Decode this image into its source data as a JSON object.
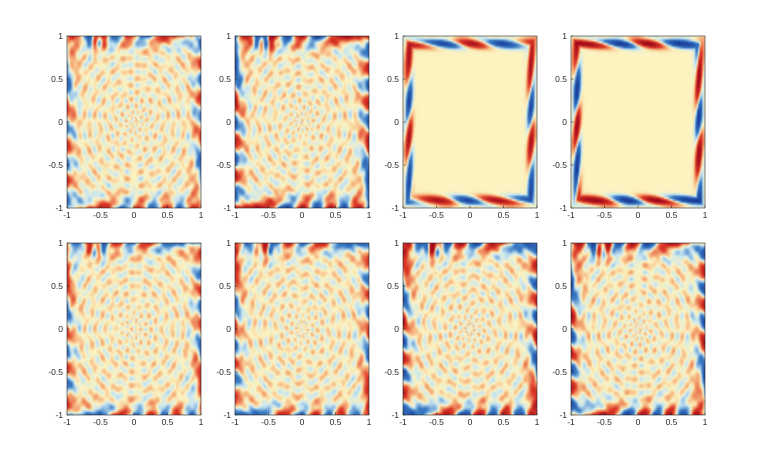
{
  "chart_data": {
    "type": "heatmap",
    "title": "",
    "layout": {
      "rows": 2,
      "cols": 4
    },
    "colormap": {
      "negative": "#1b3f9c",
      "neutral": "#fcf3c0",
      "positive": "#a10a1c",
      "light_negative": "#c8e6f2",
      "light_positive": "#f6b27c"
    },
    "xlim": [
      -1,
      1
    ],
    "ylim": [
      -1,
      1
    ],
    "x_ticks": [
      -1,
      -0.5,
      0,
      0.5,
      1
    ],
    "y_ticks": [
      -1,
      -0.5,
      0,
      0.5,
      1
    ],
    "x_tick_labels": [
      "-1",
      "-0.5",
      "0",
      "0.5",
      "1"
    ],
    "y_tick_labels": [
      "-1",
      "-0.5",
      "0",
      "0.5",
      "1"
    ],
    "panels": [
      {
        "row": 1,
        "col": 1,
        "pattern": "fine-ripple-field",
        "boundary_layer": "thin"
      },
      {
        "row": 1,
        "col": 2,
        "pattern": "fine-ripple-field",
        "boundary_layer": "medium"
      },
      {
        "row": 1,
        "col": 3,
        "pattern": "smooth-boundary-layer",
        "boundary_layer": "strong"
      },
      {
        "row": 1,
        "col": 4,
        "pattern": "smooth-boundary-layer",
        "boundary_layer": "strongest"
      },
      {
        "row": 2,
        "col": 1,
        "pattern": "fine-ripple-field",
        "boundary_layer": "thin"
      },
      {
        "row": 2,
        "col": 2,
        "pattern": "fine-ripple-field",
        "boundary_layer": "thin"
      },
      {
        "row": 2,
        "col": 3,
        "pattern": "fine-ripple-field",
        "boundary_layer": "medium"
      },
      {
        "row": 2,
        "col": 4,
        "pattern": "fine-ripple-field",
        "boundary_layer": "medium"
      }
    ]
  }
}
